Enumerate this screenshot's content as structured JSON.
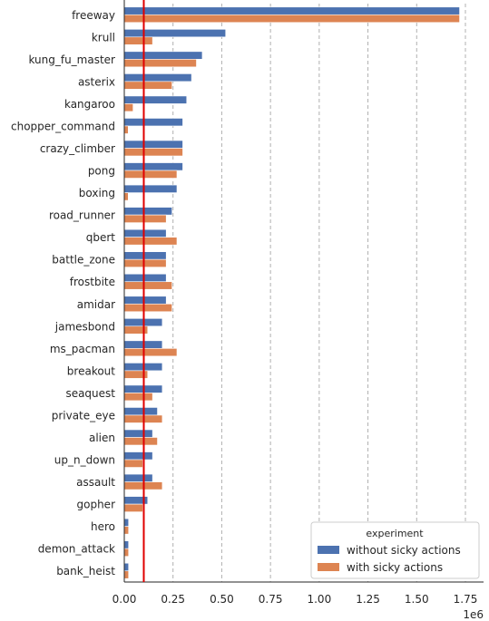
{
  "chart_data": {
    "type": "bar",
    "orientation": "horizontal",
    "categories": [
      "freeway",
      "krull",
      "kung_fu_master",
      "asterix",
      "kangaroo",
      "chopper_command",
      "crazy_climber",
      "pong",
      "boxing",
      "road_runner",
      "qbert",
      "battle_zone",
      "frostbite",
      "amidar",
      "jamesbond",
      "ms_pacman",
      "breakout",
      "seaquest",
      "private_eye",
      "alien",
      "up_n_down",
      "assault",
      "gopher",
      "hero",
      "demon_attack",
      "bank_heist"
    ],
    "series": [
      {
        "name": "without sicky actions",
        "color": "#4c72b0",
        "values": [
          1720000,
          520000,
          400000,
          345000,
          320000,
          300000,
          300000,
          300000,
          270000,
          245000,
          215000,
          215000,
          215000,
          215000,
          195000,
          195000,
          195000,
          195000,
          170000,
          145000,
          145000,
          145000,
          120000,
          22000,
          22000,
          22000
        ]
      },
      {
        "name": "with sicky actions",
        "color": "#dd8452",
        "values": [
          1720000,
          145000,
          370000,
          245000,
          45000,
          20000,
          300000,
          270000,
          20000,
          215000,
          270000,
          215000,
          245000,
          245000,
          120000,
          270000,
          120000,
          145000,
          195000,
          170000,
          95000,
          195000,
          95000,
          22000,
          22000,
          22000
        ]
      }
    ],
    "xlim": [
      0,
      1800000
    ],
    "xticks": [
      "0.00",
      "0.25",
      "0.50",
      "0.75",
      "1.00",
      "1.25",
      "1.50",
      "1.75"
    ],
    "xtick_values": [
      0,
      250000,
      500000,
      750000,
      1000000,
      1250000,
      1500000,
      1750000
    ],
    "offset_label": "1e6",
    "reference_line": {
      "x": 100000,
      "color": "#e00000"
    },
    "grid": "x-dashed",
    "legend": {
      "title": "experiment",
      "placement": "lower-right"
    }
  }
}
